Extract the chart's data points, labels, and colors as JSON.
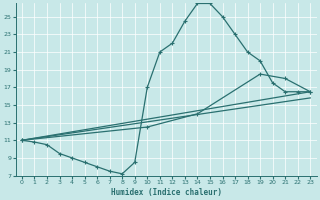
{
  "xlabel": "Humidex (Indice chaleur)",
  "bg_color": "#c8e8e8",
  "line_color": "#2a7070",
  "xlim": [
    -0.5,
    23.5
  ],
  "ylim": [
    7,
    26.5
  ],
  "yticks": [
    7,
    9,
    11,
    13,
    15,
    17,
    19,
    21,
    23,
    25
  ],
  "xticks": [
    0,
    1,
    2,
    3,
    4,
    5,
    6,
    7,
    8,
    9,
    10,
    11,
    12,
    13,
    14,
    15,
    16,
    17,
    18,
    19,
    20,
    21,
    22,
    23
  ],
  "curve": {
    "x": [
      0,
      1,
      2,
      3,
      4,
      5,
      6,
      7,
      8,
      9,
      10,
      11,
      12,
      13,
      14,
      15,
      16,
      17,
      18,
      19,
      20,
      21,
      22,
      23
    ],
    "y": [
      11,
      10.8,
      10.5,
      9.5,
      9,
      8.5,
      8,
      7.5,
      7.2,
      8.5,
      17,
      21,
      22,
      24.5,
      26.5,
      26.5,
      25,
      23,
      21,
      20,
      17.5,
      16.5,
      16.5,
      16.5
    ]
  },
  "line1": {
    "x": [
      0,
      23
    ],
    "y": [
      11,
      16.5
    ]
  },
  "line2_x": [
    0,
    10,
    14,
    19,
    21,
    23
  ],
  "line2_y": [
    11,
    12.5,
    14,
    18.5,
    18,
    16.5
  ],
  "line3": {
    "x": [
      0,
      23
    ],
    "y": [
      11,
      15.8
    ]
  }
}
